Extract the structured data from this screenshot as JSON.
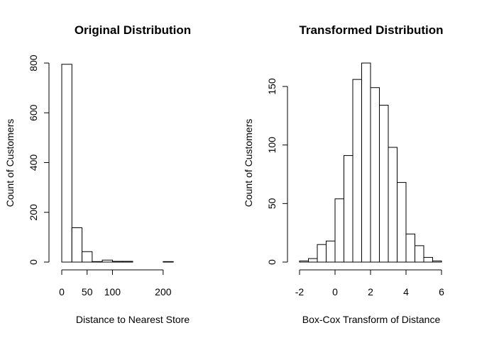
{
  "chart_data": [
    {
      "type": "bar",
      "title": "Original Distribution",
      "xlabel": "Distance to Nearest Store",
      "ylabel": "Count of Customers",
      "bin_edges": [
        0,
        20,
        40,
        60,
        80,
        100,
        120,
        140,
        160,
        180,
        200,
        220,
        240,
        260,
        280
      ],
      "values": [
        795,
        138,
        42,
        2,
        8,
        3,
        3,
        0,
        0,
        0,
        2,
        0,
        0,
        0
      ],
      "xlim": [
        0,
        280
      ],
      "ylim": [
        0,
        800
      ],
      "x_ticks": [
        0,
        50,
        100,
        200
      ],
      "x_tick_labels": [
        "0",
        "50",
        "100",
        "200"
      ],
      "y_ticks": [
        0,
        200,
        400,
        600,
        800
      ],
      "y_tick_labels": [
        "0",
        "200",
        "400",
        "600",
        "800"
      ],
      "grid": false,
      "legend": "none"
    },
    {
      "type": "bar",
      "title": "Transformed Distribution",
      "xlabel": "Box-Cox Transform of Distance",
      "ylabel": "Count of Customers",
      "bin_edges": [
        -2,
        -1.5,
        -1,
        -0.5,
        0,
        0.5,
        1,
        1.5,
        2,
        2.5,
        3,
        3.5,
        4,
        4.5,
        5,
        5.5,
        6
      ],
      "values": [
        1,
        3,
        15,
        18,
        54,
        91,
        156,
        170,
        149,
        134,
        98,
        68,
        24,
        14,
        4,
        1
      ],
      "xlim": [
        -2,
        6
      ],
      "ylim": [
        0,
        170
      ],
      "x_ticks": [
        -2,
        0,
        2,
        4,
        6
      ],
      "x_tick_labels": [
        "-2",
        "0",
        "2",
        "4",
        "6"
      ],
      "y_ticks": [
        0,
        50,
        100,
        150
      ],
      "y_tick_labels": [
        "0",
        "50",
        "100",
        "150"
      ],
      "grid": false,
      "legend": "none"
    }
  ]
}
